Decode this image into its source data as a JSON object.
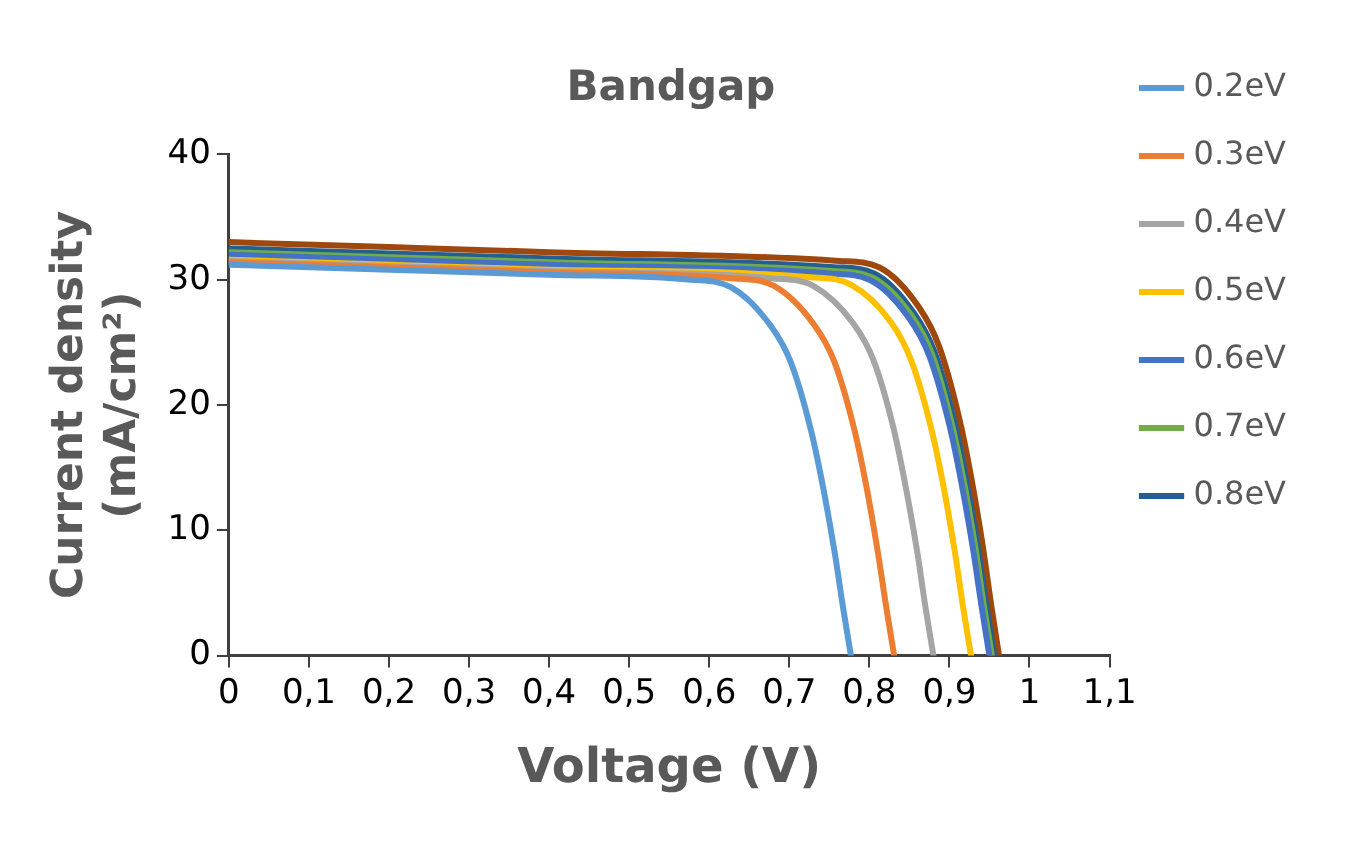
{
  "chart_data": {
    "type": "line",
    "title": "Bandgap",
    "xlabel": "Voltage (V)",
    "ylabel": "Current density\n(mA/cm²)",
    "xlim": [
      0,
      1.1
    ],
    "xticks": [
      0,
      {
        "value": 0.1,
        "label": "0,1"
      },
      {
        "value": 0.2,
        "label": "0,2"
      },
      {
        "value": 0.3,
        "label": "0,3"
      },
      {
        "value": 0.4,
        "label": "0,4"
      },
      {
        "value": 0.5,
        "label": "0,5"
      },
      {
        "value": 0.6,
        "label": "0,6"
      },
      {
        "value": 0.7,
        "label": "0,7"
      },
      {
        "value": 0.8,
        "label": "0,8"
      },
      {
        "value": 0.9,
        "label": "0,9"
      },
      1,
      {
        "value": 1.1,
        "label": "1,1"
      }
    ],
    "ylim": [
      0,
      40
    ],
    "yticks": [
      0,
      10,
      20,
      30,
      40
    ],
    "grid": false,
    "legend": "right",
    "marker": "none",
    "line_style": "solid",
    "series": [
      {
        "name": "0.2eV",
        "color": "#5b9bd5",
        "x": [
          0,
          0.2,
          0.4,
          0.577,
          0.627,
          0.677,
          0.702,
          0.727,
          0.742,
          0.757,
          0.767,
          0.777
        ],
        "values": [
          31.2,
          30.8,
          30.4,
          30.0,
          29.4,
          26.3,
          23.4,
          18.0,
          13.5,
          8.1,
          3.9,
          0
        ]
      },
      {
        "name": "0.3eV",
        "color": "#ed7d31",
        "x": [
          0,
          0.2,
          0.4,
          0.631,
          0.681,
          0.731,
          0.756,
          0.781,
          0.796,
          0.811,
          0.821,
          0.831
        ],
        "values": [
          31.4,
          31.0,
          30.6,
          30.1,
          29.5,
          26.4,
          23.5,
          18.1,
          13.6,
          8.1,
          3.9,
          0
        ]
      },
      {
        "name": "0.4eV",
        "color": "#a5a5a5",
        "x": [
          0,
          0.2,
          0.4,
          0.68,
          0.73,
          0.78,
          0.805,
          0.83,
          0.845,
          0.86,
          0.87,
          0.88
        ],
        "values": [
          31.5,
          31.1,
          30.7,
          30.1,
          29.5,
          26.5,
          23.6,
          18.2,
          13.6,
          8.2,
          3.9,
          0
        ]
      },
      {
        "name": "0.5eV",
        "color": "#ffc000",
        "x": [
          0,
          0.2,
          0.4,
          0.727,
          0.777,
          0.827,
          0.852,
          0.877,
          0.892,
          0.907,
          0.917,
          0.927
        ],
        "values": [
          31.6,
          31.2,
          30.8,
          30.2,
          29.6,
          26.6,
          23.6,
          18.2,
          13.7,
          8.2,
          3.9,
          0
        ]
      },
      {
        "name": "0.6eV",
        "color": "#4472c4",
        "x": [
          0,
          0.2,
          0.4,
          0.75,
          0.8,
          0.85,
          0.875,
          0.9,
          0.915,
          0.93,
          0.94,
          0.95
        ],
        "values": [
          32.0,
          31.6,
          31.2,
          30.5,
          30.0,
          26.9,
          23.9,
          18.4,
          13.8,
          8.3,
          4.0,
          0
        ]
      },
      {
        "name": "0.7eV",
        "color": "#70ad47",
        "x": [
          0,
          0.2,
          0.4,
          0.753,
          0.803,
          0.853,
          0.878,
          0.903,
          0.918,
          0.933,
          0.943,
          0.953
        ],
        "values": [
          32.2,
          31.8,
          31.4,
          30.7,
          30.2,
          27.1,
          24.1,
          18.5,
          13.9,
          8.4,
          4.0,
          0
        ]
      },
      {
        "name": "0.8eV",
        "color": "#255e91",
        "x": [
          0,
          0.2,
          0.4,
          0.756,
          0.806,
          0.856,
          0.881,
          0.906,
          0.921,
          0.936,
          0.946,
          0.956
        ],
        "values": [
          32.5,
          32.1,
          31.7,
          31.0,
          30.5,
          27.3,
          24.3,
          18.7,
          14.0,
          8.4,
          4.0,
          0
        ]
      },
      {
        "color": "#9e480e",
        "x": [
          0,
          0.2,
          0.4,
          0.762,
          0.812,
          0.862,
          0.887,
          0.912,
          0.927,
          0.942,
          0.952,
          0.962
        ],
        "values": [
          33.0,
          32.6,
          32.2,
          31.5,
          31.0,
          27.8,
          24.7,
          19.0,
          14.3,
          8.6,
          4.1,
          0
        ]
      }
    ]
  }
}
